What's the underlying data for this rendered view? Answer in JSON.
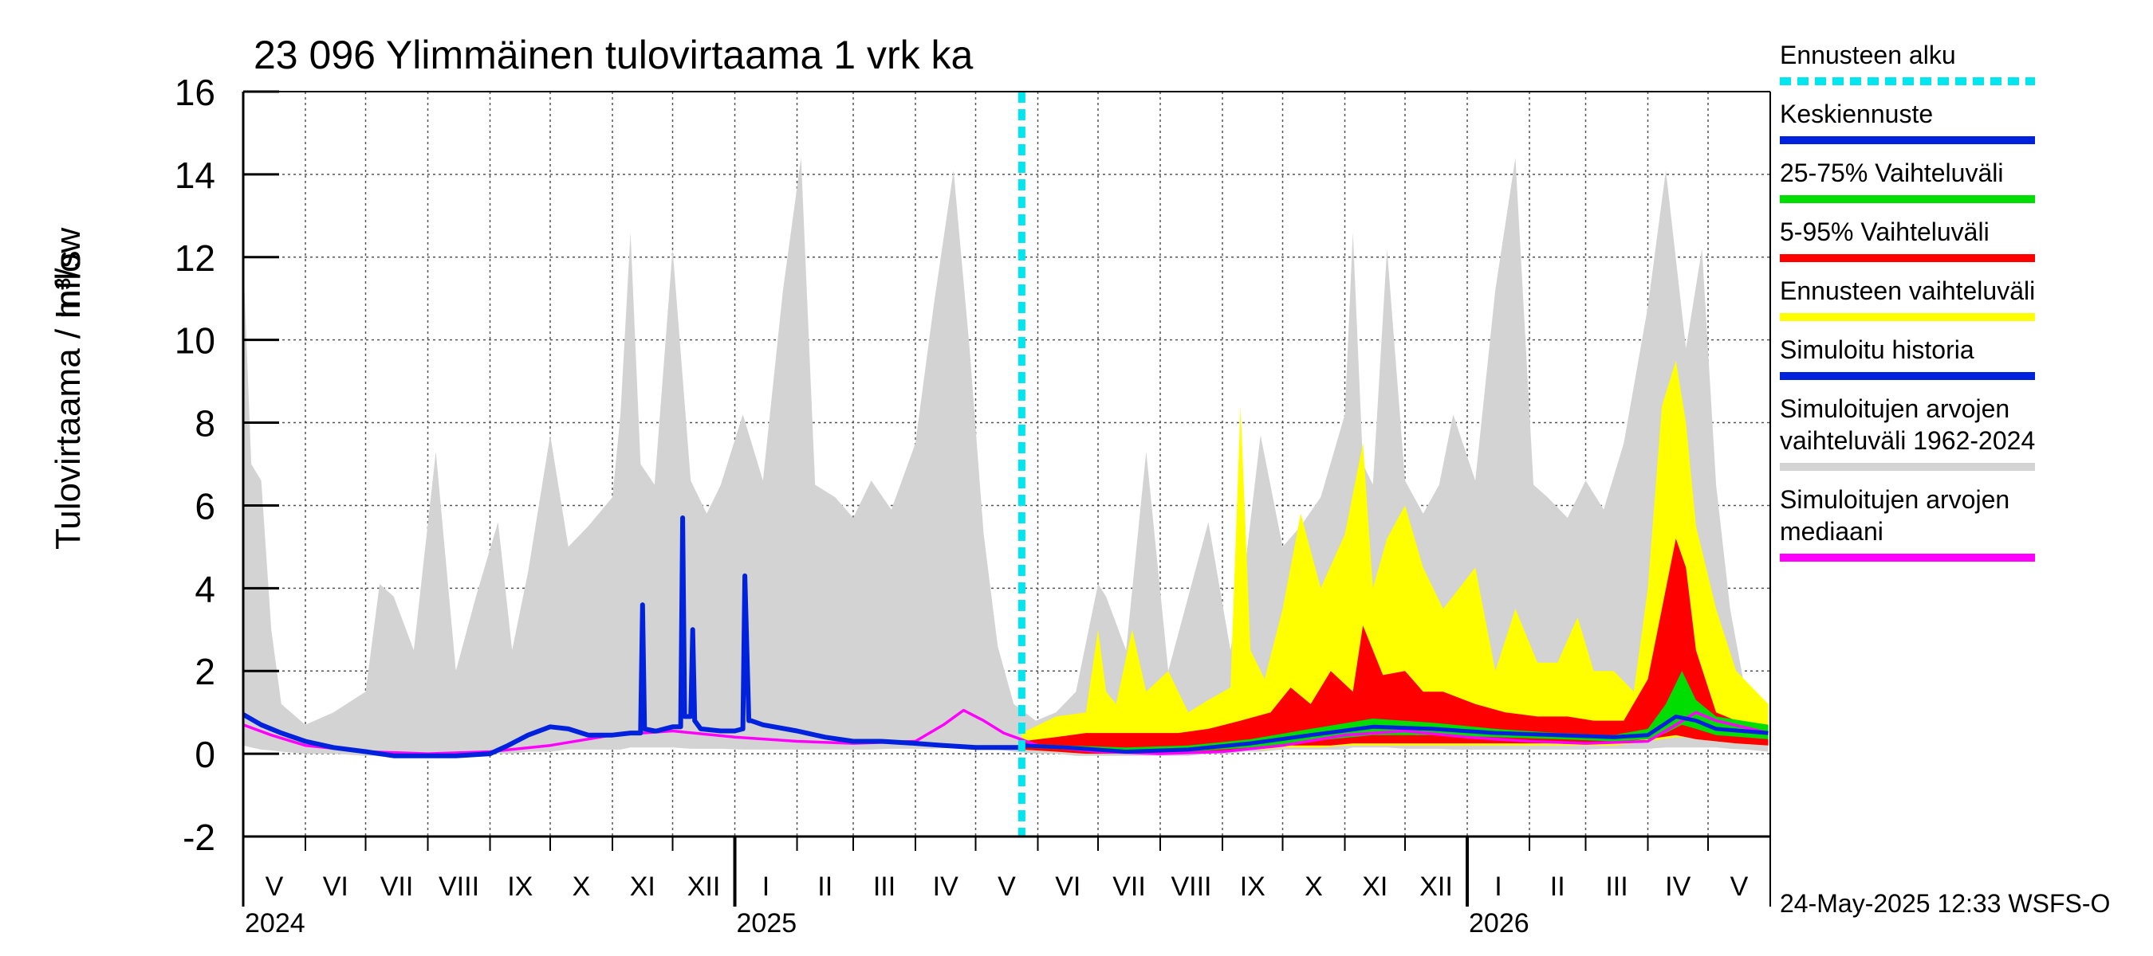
{
  "chart_data": {
    "type": "area",
    "title": "23 096 Ylimmäinen tulovirtaama 1 vrk ka",
    "ylabel": "Tulovirtaama / Inflow",
    "yunit": "m³/s",
    "ylim": [
      -2,
      16
    ],
    "yticks": [
      -2,
      0,
      2,
      4,
      6,
      8,
      10,
      12,
      14,
      16
    ],
    "xlim": [
      "2024-05-01",
      "2026-05-31"
    ],
    "grid": true,
    "months": [
      {
        "label": "V",
        "start": "2024-05-01"
      },
      {
        "label": "VI",
        "start": "2024-06-01"
      },
      {
        "label": "VII",
        "start": "2024-07-01"
      },
      {
        "label": "VIII",
        "start": "2024-08-01"
      },
      {
        "label": "IX",
        "start": "2024-09-01"
      },
      {
        "label": "X",
        "start": "2024-10-01"
      },
      {
        "label": "XI",
        "start": "2024-11-01"
      },
      {
        "label": "XII",
        "start": "2024-12-01"
      },
      {
        "label": "I",
        "start": "2025-01-01"
      },
      {
        "label": "II",
        "start": "2025-02-01"
      },
      {
        "label": "III",
        "start": "2025-03-01"
      },
      {
        "label": "IV",
        "start": "2025-04-01"
      },
      {
        "label": "V",
        "start": "2025-05-01"
      },
      {
        "label": "VI",
        "start": "2025-06-01"
      },
      {
        "label": "VII",
        "start": "2025-07-01"
      },
      {
        "label": "VIII",
        "start": "2025-08-01"
      },
      {
        "label": "IX",
        "start": "2025-09-01"
      },
      {
        "label": "X",
        "start": "2025-10-01"
      },
      {
        "label": "XI",
        "start": "2025-11-01"
      },
      {
        "label": "XII",
        "start": "2025-12-01"
      },
      {
        "label": "I",
        "start": "2026-01-01"
      },
      {
        "label": "II",
        "start": "2026-02-01"
      },
      {
        "label": "III",
        "start": "2026-03-01"
      },
      {
        "label": "IV",
        "start": "2026-04-01"
      },
      {
        "label": "V",
        "start": "2026-05-01"
      }
    ],
    "years": [
      {
        "label": "2024",
        "date": "2024-05-01"
      },
      {
        "label": "2025",
        "date": "2025-01-01"
      },
      {
        "label": "2026",
        "date": "2026-01-01"
      }
    ],
    "forecast_start": "2025-05-24",
    "timestamp": "24-May-2025 12:33 WSFS-O",
    "legend": [
      {
        "label": "Ennusteen alku",
        "color": "#00e5ee",
        "style": "dashed"
      },
      {
        "label": "Keskiennuste",
        "color": "#0022dd",
        "style": "line"
      },
      {
        "label": "25-75% Vaihteluväli",
        "color": "#00dd00",
        "style": "line"
      },
      {
        "label": "5-95% Vaihteluväli",
        "color": "#ff0000",
        "style": "line"
      },
      {
        "label": "Ennusteen vaihteluväli",
        "color": "#ffff00",
        "style": "line"
      },
      {
        "label": "Simuloitu historia",
        "color": "#0022dd",
        "style": "line"
      },
      {
        "label": "Simuloitujen arvojen vaihteluväli 1962-2024",
        "lines": [
          "Simuloitujen arvojen",
          "vaihteluväli 1962-2024"
        ],
        "color": "#d3d3d3",
        "style": "line"
      },
      {
        "label": "Simuloitujen arvojen mediaani",
        "lines": [
          "Simuloitujen arvojen",
          "mediaani"
        ],
        "color": "#ff00ff",
        "style": "line"
      }
    ],
    "series": [
      {
        "name": "Simuloitujen arvojen vaihteluväli 1962-2024",
        "kind": "band",
        "color": "#d3d3d3",
        "x": [
          "2024-05-01",
          "2024-05-05",
          "2024-05-10",
          "2024-05-15",
          "2024-05-20",
          "2024-06-01",
          "2024-06-15",
          "2024-07-01",
          "2024-07-08",
          "2024-07-15",
          "2024-07-25",
          "2024-08-05",
          "2024-08-15",
          "2024-08-25",
          "2024-09-05",
          "2024-09-12",
          "2024-09-20",
          "2024-10-01",
          "2024-10-10",
          "2024-10-20",
          "2024-11-01",
          "2024-11-05",
          "2024-11-10",
          "2024-11-15",
          "2024-11-22",
          "2024-12-01",
          "2024-12-10",
          "2024-12-18",
          "2024-12-25",
          "2025-01-05",
          "2025-01-15",
          "2025-01-25",
          "2025-02-03",
          "2025-02-10",
          "2025-02-20",
          "2025-03-01",
          "2025-03-10",
          "2025-03-20",
          "2025-04-01",
          "2025-04-10",
          "2025-04-20",
          "2025-04-28",
          "2025-05-05",
          "2025-05-12",
          "2025-05-20",
          "2025-05-31",
          "2025-06-10",
          "2025-06-20",
          "2025-07-01",
          "2025-07-05",
          "2025-07-15",
          "2025-07-25",
          "2025-08-05",
          "2025-08-15",
          "2025-08-25",
          "2025-09-05",
          "2025-09-12",
          "2025-09-20",
          "2025-10-01",
          "2025-10-10",
          "2025-10-20",
          "2025-11-01",
          "2025-11-05",
          "2025-11-10",
          "2025-11-15",
          "2025-11-22",
          "2025-12-01",
          "2025-12-10",
          "2025-12-18",
          "2025-12-25",
          "2026-01-05",
          "2026-01-15",
          "2026-01-25",
          "2026-02-03",
          "2026-02-10",
          "2026-02-20",
          "2026-03-01",
          "2026-03-10",
          "2026-03-20",
          "2026-04-01",
          "2026-04-10",
          "2026-04-20",
          "2026-04-28",
          "2026-05-05",
          "2026-05-12",
          "2026-05-20",
          "2026-05-31"
        ],
        "upper": [
          12.0,
          7.0,
          6.6,
          3.0,
          1.2,
          0.7,
          1.0,
          1.5,
          4.1,
          3.8,
          2.5,
          7.3,
          2.0,
          3.8,
          5.6,
          2.5,
          4.4,
          7.7,
          5.0,
          5.5,
          6.2,
          8.2,
          12.6,
          7.0,
          6.5,
          12.2,
          6.6,
          5.8,
          6.5,
          8.2,
          6.6,
          11.2,
          14.4,
          6.5,
          6.2,
          5.7,
          6.6,
          5.9,
          7.5,
          10.8,
          14.1,
          9.8,
          5.3,
          2.6,
          1.2,
          0.8,
          1.0,
          1.5,
          4.1,
          3.8,
          2.5,
          7.3,
          2.0,
          3.8,
          5.6,
          2.5,
          4.4,
          7.7,
          5.0,
          5.5,
          6.2,
          8.2,
          12.6,
          7.0,
          6.5,
          12.2,
          6.6,
          5.8,
          6.5,
          8.2,
          6.6,
          11.2,
          14.4,
          6.5,
          6.2,
          5.7,
          6.6,
          5.9,
          7.5,
          10.8,
          14.1,
          9.8,
          12.2,
          6.5,
          3.5,
          1.4,
          1.0
        ],
        "lower": [
          0.2,
          0.15,
          0.1,
          0.08,
          0.05,
          0.0,
          0.0,
          -0.05,
          -0.05,
          -0.05,
          -0.05,
          -0.05,
          -0.05,
          -0.05,
          0.0,
          0.0,
          0.05,
          0.05,
          0.1,
          0.1,
          0.1,
          0.1,
          0.15,
          0.15,
          0.15,
          0.15,
          0.12,
          0.12,
          0.12,
          0.1,
          0.1,
          0.1,
          0.1,
          0.1,
          0.1,
          0.1,
          0.1,
          0.12,
          0.12,
          0.12,
          0.15,
          0.15,
          0.12,
          0.1,
          0.05,
          0.0,
          0.0,
          -0.05,
          -0.05,
          -0.05,
          -0.05,
          -0.05,
          -0.05,
          -0.05,
          0.0,
          0.0,
          0.05,
          0.05,
          0.1,
          0.1,
          0.1,
          0.1,
          0.15,
          0.15,
          0.15,
          0.15,
          0.12,
          0.12,
          0.12,
          0.1,
          0.1,
          0.1,
          0.1,
          0.1,
          0.1,
          0.1,
          0.1,
          0.12,
          0.12,
          0.12,
          0.15,
          0.15,
          0.15,
          0.15,
          0.12,
          0.1,
          0.05
        ]
      },
      {
        "name": "Ennusteen vaihteluväli",
        "kind": "band",
        "color": "#ffff00",
        "x": [
          "2025-05-24",
          "2025-06-10",
          "2025-06-25",
          "2025-07-01",
          "2025-07-05",
          "2025-07-10",
          "2025-07-18",
          "2025-07-25",
          "2025-08-05",
          "2025-08-15",
          "2025-08-25",
          "2025-09-05",
          "2025-09-10",
          "2025-09-15",
          "2025-09-22",
          "2025-10-01",
          "2025-10-10",
          "2025-10-20",
          "2025-11-01",
          "2025-11-10",
          "2025-11-15",
          "2025-11-22",
          "2025-12-01",
          "2025-12-10",
          "2025-12-20",
          "2026-01-05",
          "2026-01-15",
          "2026-01-25",
          "2026-02-05",
          "2026-02-15",
          "2026-02-25",
          "2026-03-05",
          "2026-03-15",
          "2026-03-25",
          "2026-04-01",
          "2026-04-08",
          "2026-04-15",
          "2026-04-20",
          "2026-04-25",
          "2026-05-05",
          "2026-05-15",
          "2026-05-31"
        ],
        "upper": [
          0.5,
          0.9,
          1.0,
          3.0,
          1.5,
          1.2,
          3.0,
          1.5,
          2.0,
          1.0,
          1.3,
          1.6,
          8.4,
          2.5,
          1.8,
          3.5,
          5.8,
          4.0,
          5.3,
          7.5,
          4.0,
          5.2,
          6.0,
          4.5,
          3.5,
          4.5,
          2.0,
          3.5,
          2.2,
          2.2,
          3.3,
          2.0,
          2.0,
          1.5,
          4.0,
          8.4,
          9.5,
          8.0,
          5.5,
          3.5,
          2.0,
          1.2
        ],
        "lower": [
          0.1,
          0.05,
          0.0,
          0.0,
          0.0,
          0.0,
          0.0,
          0.0,
          0.0,
          0.0,
          0.05,
          0.05,
          0.1,
          0.1,
          0.1,
          0.15,
          0.15,
          0.15,
          0.2,
          0.2,
          0.2,
          0.2,
          0.2,
          0.2,
          0.2,
          0.2,
          0.2,
          0.2,
          0.2,
          0.2,
          0.2,
          0.2,
          0.2,
          0.25,
          0.3,
          0.35,
          0.4,
          0.4,
          0.35,
          0.3,
          0.25,
          0.2
        ]
      },
      {
        "name": "5-95% Vaihteluväli",
        "kind": "band",
        "color": "#ff0000",
        "x": [
          "2025-05-24",
          "2025-06-10",
          "2025-06-25",
          "2025-07-10",
          "2025-07-25",
          "2025-08-10",
          "2025-08-25",
          "2025-09-10",
          "2025-09-25",
          "2025-10-05",
          "2025-10-15",
          "2025-10-25",
          "2025-11-05",
          "2025-11-10",
          "2025-11-20",
          "2025-12-01",
          "2025-12-10",
          "2025-12-20",
          "2026-01-05",
          "2026-01-20",
          "2026-02-05",
          "2026-02-20",
          "2026-03-05",
          "2026-03-20",
          "2026-04-01",
          "2026-04-08",
          "2026-04-15",
          "2026-04-20",
          "2026-04-25",
          "2026-05-05",
          "2026-05-15",
          "2026-05-31"
        ],
        "upper": [
          0.3,
          0.4,
          0.5,
          0.5,
          0.5,
          0.5,
          0.6,
          0.8,
          1.0,
          1.6,
          1.2,
          2.0,
          1.5,
          3.1,
          1.9,
          2.0,
          1.5,
          1.5,
          1.2,
          1.0,
          0.9,
          0.9,
          0.8,
          0.8,
          1.8,
          3.5,
          5.2,
          4.5,
          2.5,
          1.0,
          0.8,
          0.7
        ],
        "lower": [
          0.1,
          0.05,
          0.0,
          0.0,
          0.0,
          0.0,
          0.05,
          0.1,
          0.15,
          0.2,
          0.2,
          0.2,
          0.25,
          0.25,
          0.25,
          0.25,
          0.25,
          0.25,
          0.25,
          0.25,
          0.25,
          0.25,
          0.25,
          0.3,
          0.35,
          0.4,
          0.45,
          0.4,
          0.35,
          0.3,
          0.25,
          0.2
        ]
      },
      {
        "name": "25-75% Vaihteluväli",
        "kind": "band",
        "color": "#00dd00",
        "x": [
          "2025-05-24",
          "2025-06-15",
          "2025-07-15",
          "2025-08-15",
          "2025-09-15",
          "2025-10-15",
          "2025-11-15",
          "2025-12-15",
          "2026-01-15",
          "2026-02-15",
          "2026-03-15",
          "2026-04-01",
          "2026-04-10",
          "2026-04-18",
          "2026-04-25",
          "2026-05-05",
          "2026-05-31"
        ],
        "upper": [
          0.25,
          0.2,
          0.15,
          0.2,
          0.35,
          0.6,
          0.85,
          0.75,
          0.6,
          0.5,
          0.45,
          0.6,
          1.2,
          2.0,
          1.3,
          0.9,
          0.7
        ],
        "lower": [
          0.15,
          0.1,
          0.05,
          0.05,
          0.15,
          0.3,
          0.45,
          0.45,
          0.4,
          0.35,
          0.3,
          0.35,
          0.5,
          0.7,
          0.6,
          0.45,
          0.35
        ]
      },
      {
        "name": "Simuloitujen arvojen mediaani",
        "kind": "line",
        "color": "#ff00ff",
        "x": [
          "2024-05-01",
          "2024-05-15",
          "2024-06-01",
          "2024-07-01",
          "2024-08-01",
          "2024-09-01",
          "2024-10-01",
          "2024-11-01",
          "2024-12-01",
          "2025-01-01",
          "2025-02-01",
          "2025-03-01",
          "2025-04-01",
          "2025-04-15",
          "2025-04-25",
          "2025-05-05",
          "2025-05-15",
          "2025-06-01",
          "2025-07-01",
          "2025-08-01",
          "2025-09-01",
          "2025-10-01",
          "2025-11-01",
          "2025-12-01",
          "2026-01-01",
          "2026-02-01",
          "2026-03-01",
          "2026-04-01",
          "2026-04-15",
          "2026-04-25",
          "2026-05-05",
          "2026-05-31"
        ],
        "values": [
          0.7,
          0.45,
          0.2,
          0.05,
          0.0,
          0.05,
          0.2,
          0.45,
          0.55,
          0.4,
          0.3,
          0.25,
          0.3,
          0.7,
          1.05,
          0.8,
          0.5,
          0.2,
          0.05,
          0.0,
          0.05,
          0.2,
          0.45,
          0.55,
          0.4,
          0.3,
          0.25,
          0.3,
          0.7,
          1.0,
          0.8,
          0.5
        ]
      },
      {
        "name": "Keskiennuste",
        "kind": "line",
        "color": "#0022dd",
        "x": [
          "2025-05-24",
          "2025-06-15",
          "2025-07-15",
          "2025-08-15",
          "2025-09-15",
          "2025-10-15",
          "2025-11-15",
          "2025-12-15",
          "2026-01-15",
          "2026-02-15",
          "2026-03-15",
          "2026-04-01",
          "2026-04-15",
          "2026-04-25",
          "2026-05-05",
          "2026-05-31"
        ],
        "values": [
          0.2,
          0.15,
          0.05,
          0.1,
          0.25,
          0.45,
          0.65,
          0.6,
          0.5,
          0.45,
          0.4,
          0.45,
          0.9,
          0.8,
          0.6,
          0.5
        ]
      },
      {
        "name": "Simuloitu historia",
        "kind": "line",
        "color": "#0022dd",
        "x": [
          "2024-05-01",
          "2024-05-10",
          "2024-05-20",
          "2024-06-01",
          "2024-06-15",
          "2024-07-01",
          "2024-07-15",
          "2024-08-01",
          "2024-08-15",
          "2024-09-01",
          "2024-09-10",
          "2024-09-20",
          "2024-10-01",
          "2024-10-10",
          "2024-10-20",
          "2024-11-01",
          "2024-11-10",
          "2024-11-15",
          "2024-11-16",
          "2024-11-17",
          "2024-11-22",
          "2024-11-23",
          "2024-12-01",
          "2024-12-05",
          "2024-12-06",
          "2024-12-07",
          "2024-12-10",
          "2024-12-11",
          "2024-12-12",
          "2024-12-15",
          "2024-12-25",
          "2025-01-01",
          "2025-01-05",
          "2025-01-06",
          "2025-01-08",
          "2025-01-09",
          "2025-01-15",
          "2025-02-01",
          "2025-02-15",
          "2025-03-01",
          "2025-03-15",
          "2025-04-01",
          "2025-04-15",
          "2025-05-01",
          "2025-05-15",
          "2025-05-24"
        ],
        "values": [
          0.95,
          0.7,
          0.5,
          0.3,
          0.15,
          0.05,
          -0.05,
          -0.05,
          -0.05,
          0.0,
          0.2,
          0.45,
          0.65,
          0.6,
          0.45,
          0.45,
          0.5,
          0.5,
          3.6,
          0.6,
          0.55,
          0.55,
          0.65,
          0.65,
          5.7,
          0.9,
          0.9,
          3.0,
          0.8,
          0.6,
          0.55,
          0.55,
          0.6,
          4.3,
          0.8,
          0.8,
          0.7,
          0.55,
          0.4,
          0.3,
          0.3,
          0.25,
          0.2,
          0.15,
          0.15,
          0.15
        ]
      }
    ]
  }
}
